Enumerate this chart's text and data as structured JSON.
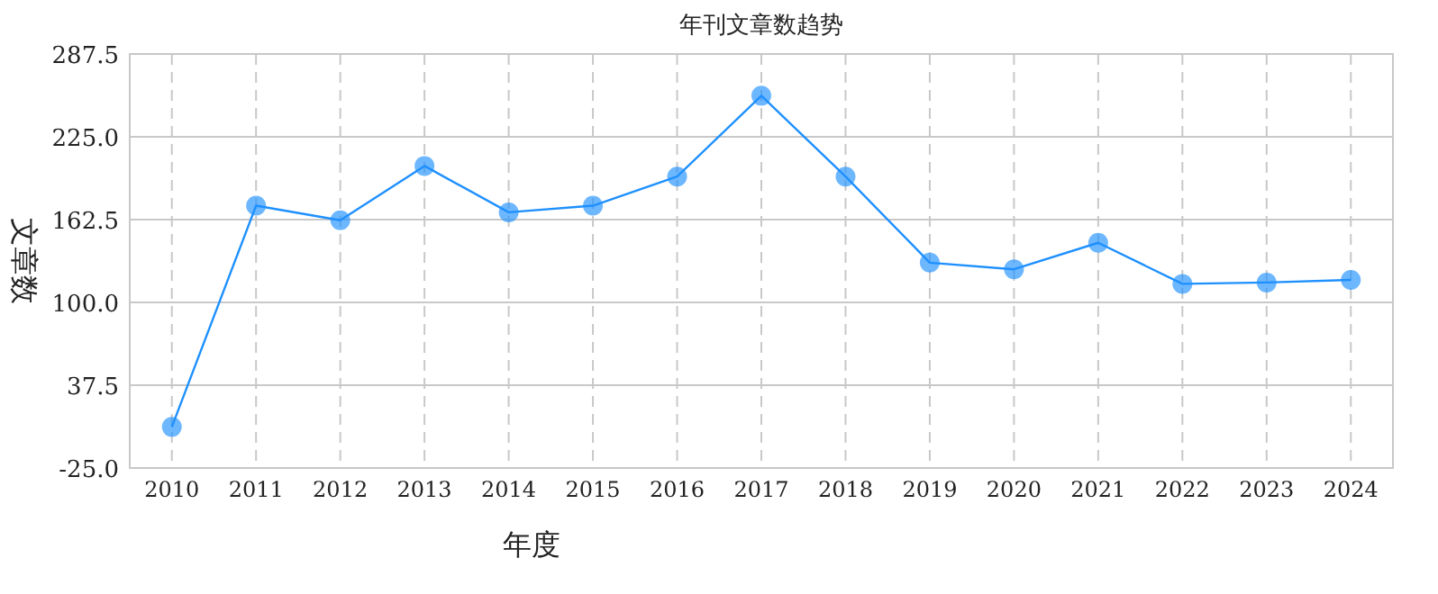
{
  "chart_data": {
    "type": "line",
    "title": "年刊文章数趋势",
    "xlabel": "年度",
    "ylabel": "文章数",
    "categories": [
      "2010",
      "2011",
      "2012",
      "2013",
      "2014",
      "2015",
      "2016",
      "2017",
      "2018",
      "2019",
      "2020",
      "2021",
      "2022",
      "2023",
      "2024"
    ],
    "series": [
      {
        "color": "#1e90ff",
        "values": [
          6,
          173,
          162,
          203,
          168,
          173,
          195,
          256,
          195,
          130,
          125,
          145,
          114,
          115,
          117
        ]
      }
    ],
    "ylim": [
      -25,
      287.5
    ],
    "yticks": [
      {
        "value": -25,
        "label": "-25.0"
      },
      37.5,
      {
        "value": 100,
        "label": "100.0"
      },
      162.5,
      {
        "value": 225,
        "label": "225.0"
      },
      287.5
    ],
    "grid": true,
    "marker": "circle",
    "line_style": "solid"
  }
}
